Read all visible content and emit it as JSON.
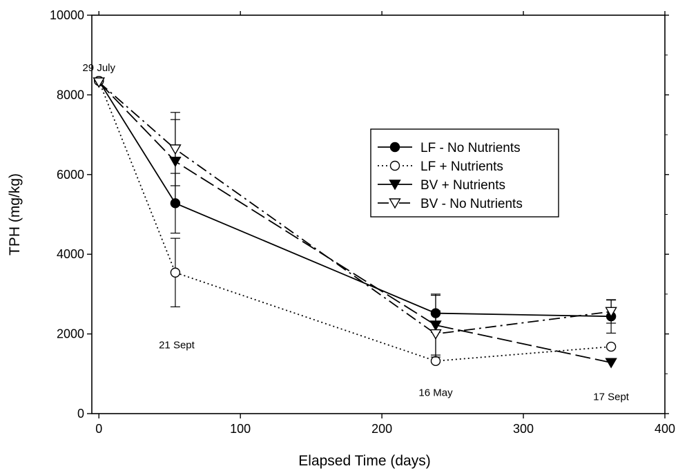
{
  "chart_data": {
    "type": "line",
    "xlabel": "Elapsed Time (days)",
    "ylabel": "TPH (mg/kg)",
    "xlim": [
      -5,
      400
    ],
    "ylim": [
      0,
      10000
    ],
    "xticks": [
      0,
      100,
      200,
      300,
      400
    ],
    "yticks": [
      0,
      2000,
      4000,
      6000,
      8000,
      10000
    ],
    "grid": false,
    "legend_position": "center-right",
    "annotations": [
      {
        "text": "29 July",
        "x": 0,
        "y": 8600
      },
      {
        "text": "21 Sept",
        "x": 55,
        "y": 1640
      },
      {
        "text": "16 May",
        "x": 238,
        "y": 440
      },
      {
        "text": "17 Sept",
        "x": 362,
        "y": 340
      }
    ],
    "series": [
      {
        "name": "LF - No Nutrients",
        "marker": "circle-filled",
        "line": "solid",
        "color": "#000000",
        "x": [
          0,
          54,
          238,
          362
        ],
        "y": [
          8350,
          5280,
          2520,
          2440
        ],
        "err": [
          0,
          750,
          480,
          420
        ]
      },
      {
        "name": "LF + Nutrients",
        "marker": "circle-open",
        "line": "dotted",
        "color": "#000000",
        "x": [
          0,
          54,
          238,
          362
        ],
        "y": [
          8350,
          3540,
          1320,
          1680
        ],
        "err": [
          0,
          860,
          0,
          0
        ]
      },
      {
        "name": "BV + Nutrients",
        "marker": "triangle-down-filled",
        "line": "longdash",
        "color": "#000000",
        "x": [
          0,
          54,
          238,
          362
        ],
        "y": [
          8320,
          6330,
          2220,
          1280
        ],
        "err": [
          0,
          1050,
          750,
          0
        ]
      },
      {
        "name": "BV - No Nutrients",
        "marker": "triangle-down-open",
        "line": "dashdot",
        "color": "#000000",
        "x": [
          0,
          54,
          238,
          362
        ],
        "y": [
          8320,
          6640,
          2000,
          2560
        ],
        "err": [
          0,
          920,
          580,
          290
        ]
      }
    ]
  }
}
